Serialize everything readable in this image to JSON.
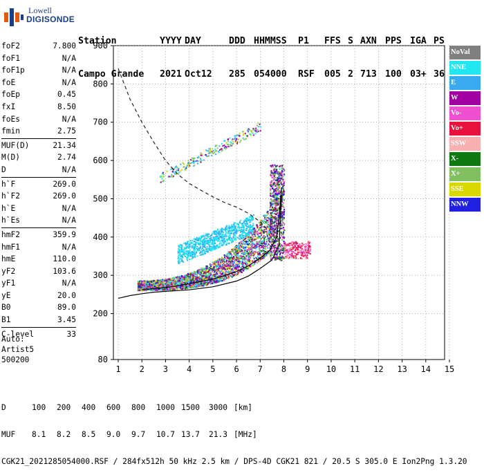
{
  "logo": {
    "line1": "Lowell",
    "line2": "DIGISONDE"
  },
  "header": {
    "row1": [
      "Station",
      "YYYY",
      "DAY",
      "DDD",
      "HHMMSS",
      "P1",
      "FFS",
      "S",
      "AXN",
      "PPS",
      "IGA",
      "PS"
    ],
    "row2": [
      "Campo Grande",
      "2021",
      "Oct12",
      "285",
      "054000",
      "RSF",
      "005",
      "2",
      "713",
      "100",
      "03+",
      "36"
    ]
  },
  "params": [
    [
      {
        "k": "foF2",
        "v": "7.800"
      },
      {
        "k": "foF1",
        "v": "N/A"
      },
      {
        "k": "foF1p",
        "v": "N/A"
      },
      {
        "k": "foE",
        "v": "N/A"
      },
      {
        "k": "foEp",
        "v": "0.45"
      },
      {
        "k": "fxI",
        "v": "8.50"
      },
      {
        "k": "foEs",
        "v": "N/A"
      },
      {
        "k": "fmin",
        "v": "2.75"
      }
    ],
    [
      {
        "k": "MUF(D)",
        "v": "21.34"
      },
      {
        "k": "M(D)",
        "v": "2.74"
      },
      {
        "k": "D",
        "v": "N/A"
      }
    ],
    [
      {
        "k": "h`F",
        "v": "269.0"
      },
      {
        "k": "h`F2",
        "v": "269.0"
      },
      {
        "k": "h`E",
        "v": "N/A"
      },
      {
        "k": "h`Es",
        "v": "N/A"
      }
    ],
    [
      {
        "k": "hmF2",
        "v": "359.9"
      },
      {
        "k": "hmF1",
        "v": "N/A"
      },
      {
        "k": "hmE",
        "v": "110.0"
      },
      {
        "k": "yF2",
        "v": "103.6"
      },
      {
        "k": "yF1",
        "v": "N/A"
      },
      {
        "k": "yE",
        "v": "20.0"
      },
      {
        "k": "B0",
        "v": "89.0"
      },
      {
        "k": "B1",
        "v": "3.45"
      }
    ],
    [
      {
        "k": "C-level",
        "v": "33"
      }
    ]
  ],
  "auto": {
    "line1": "Auto:",
    "line2": "Artist5",
    "line3": "500200"
  },
  "legend": [
    {
      "label": "NoVal",
      "color": "#808080"
    },
    {
      "label": "NNE",
      "color": "#22e6f0"
    },
    {
      "label": "E",
      "color": "#3aaaf0"
    },
    {
      "label": "W",
      "color": "#a000a0"
    },
    {
      "label": "Vo-",
      "color": "#f050d0"
    },
    {
      "label": "Vo+",
      "color": "#e8103c"
    },
    {
      "label": "SSW",
      "color": "#f8b0b0"
    },
    {
      "label": "X-",
      "color": "#107810"
    },
    {
      "label": "X+",
      "color": "#80c060"
    },
    {
      "label": "SSE",
      "color": "#d8d800"
    },
    {
      "label": "NNW",
      "color": "#2020e0"
    }
  ],
  "chart_data": {
    "type": "scatter",
    "xlim": [
      1,
      15
    ],
    "ylim": [
      80,
      900
    ],
    "x_ticks": [
      "1",
      "2",
      "3",
      "4",
      "5",
      "6",
      "7",
      "8",
      "9",
      "10",
      "11",
      "12",
      "13",
      "14",
      "15"
    ],
    "y_ticks": [
      {
        "v": 80,
        "label": "80"
      },
      {
        "v": 200,
        "label": "200"
      },
      {
        "v": 300,
        "label": "300"
      },
      {
        "v": 400,
        "label": "400"
      },
      {
        "v": 500,
        "label": "500"
      },
      {
        "v": 600,
        "label": "600"
      },
      {
        "v": 700,
        "label": "700"
      },
      {
        "v": 800,
        "label": "800"
      },
      {
        "v": 900,
        "label": "900"
      }
    ],
    "grid": "dotted",
    "muf_curve_dashed": [
      [
        1.0,
        840
      ],
      [
        1.5,
        760
      ],
      [
        2.0,
        700
      ],
      [
        2.5,
        648
      ],
      [
        3.0,
        600
      ],
      [
        3.5,
        565
      ],
      [
        4.0,
        540
      ],
      [
        4.5,
        522
      ],
      [
        5.0,
        505
      ],
      [
        5.5,
        490
      ],
      [
        6.0,
        478
      ],
      [
        6.5,
        462
      ],
      [
        7.0,
        440
      ],
      [
        7.3,
        420
      ]
    ],
    "profile_lower": [
      [
        1.0,
        240
      ],
      [
        1.5,
        247
      ],
      [
        2.0,
        252
      ],
      [
        2.5,
        256
      ],
      [
        3.0,
        258
      ],
      [
        4.0,
        262
      ],
      [
        5.0,
        270
      ],
      [
        6.0,
        285
      ],
      [
        6.5,
        298
      ],
      [
        7.0,
        318
      ],
      [
        7.5,
        340
      ],
      [
        7.8,
        380
      ],
      [
        7.85,
        450
      ],
      [
        7.9,
        510
      ]
    ],
    "profile_upper": [
      [
        2.0,
        262
      ],
      [
        3.0,
        268
      ],
      [
        4.0,
        278
      ],
      [
        5.0,
        290
      ],
      [
        6.0,
        310
      ],
      [
        6.5,
        325
      ],
      [
        7.0,
        345
      ],
      [
        7.4,
        365
      ],
      [
        7.7,
        400
      ],
      [
        7.8,
        450
      ],
      [
        7.9,
        530
      ]
    ]
  },
  "footer": {
    "d_label": "D",
    "d_values": [
      "100",
      "200",
      "400",
      "600",
      "800",
      "1000",
      "1500",
      "3000",
      "[km]"
    ],
    "muf_label": "MUF",
    "muf_values": [
      "8.1",
      "8.2",
      "8.5",
      "9.0",
      "9.7",
      "10.7",
      "13.7",
      "21.3",
      "[MHz]"
    ],
    "info": "CGK21_2021285054000.RSF / 284fx512h 50 kHz 2.5 km / DPS-4D CGK21 821 / 20.5 S 305.0 E Ion2Png 1.3.20"
  }
}
